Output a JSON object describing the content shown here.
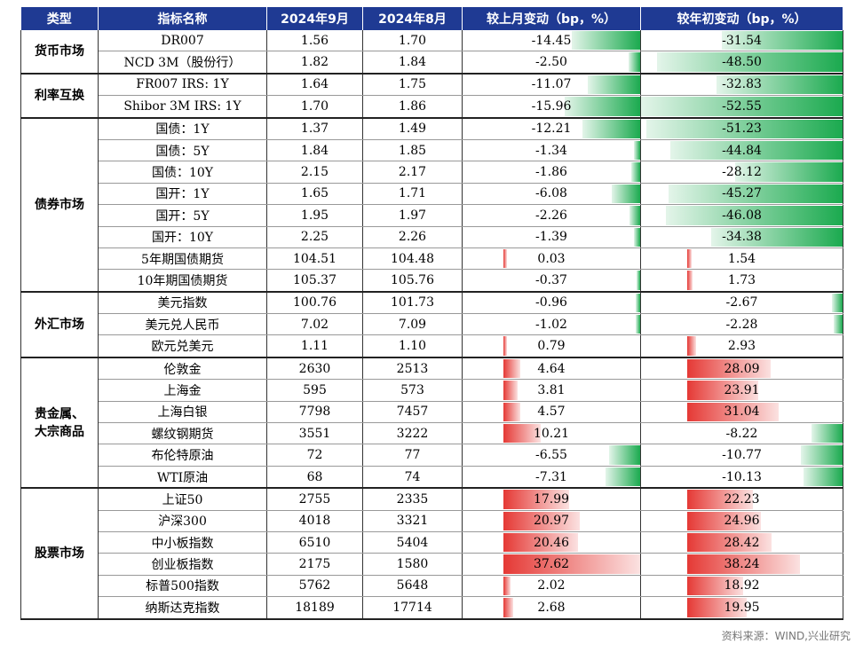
{
  "headers": [
    "类型",
    "指标名称",
    "2024年9月",
    "2024年8月",
    "较上月变动（bp，%）",
    "较年初变动（bp，%）"
  ],
  "colors": {
    "header_bg": "#1F3A93",
    "positive": "#E53935",
    "negative": "#1BAA4F"
  },
  "groups": [
    {
      "name": "货币市场",
      "rows": [
        {
          "name": "DR007",
          "sep": "1.56",
          "aug": "1.70",
          "mom": "-14.45",
          "ytd": "-31.54"
        },
        {
          "name": "NCD 3M（股份行）",
          "sep": "1.82",
          "aug": "1.84",
          "mom": "-2.50",
          "ytd": "-48.50"
        }
      ]
    },
    {
      "name": "利率互换",
      "rows": [
        {
          "name": "FR007 IRS: 1Y",
          "sep": "1.64",
          "aug": "1.75",
          "mom": "-11.07",
          "ytd": "-32.83"
        },
        {
          "name": "Shibor 3M IRS: 1Y",
          "sep": "1.70",
          "aug": "1.86",
          "mom": "-15.96",
          "ytd": "-52.55"
        }
      ]
    },
    {
      "name": "债券市场",
      "rows": [
        {
          "name": "国债：1Y",
          "sep": "1.37",
          "aug": "1.49",
          "mom": "-12.21",
          "ytd": "-51.23"
        },
        {
          "name": "国债：5Y",
          "sep": "1.84",
          "aug": "1.85",
          "mom": "-1.34",
          "ytd": "-44.84"
        },
        {
          "name": "国债：10Y",
          "sep": "2.15",
          "aug": "2.17",
          "mom": "-1.86",
          "ytd": "-28.12"
        },
        {
          "name": "国开：1Y",
          "sep": "1.65",
          "aug": "1.71",
          "mom": "-6.08",
          "ytd": "-45.27"
        },
        {
          "name": "国开：5Y",
          "sep": "1.95",
          "aug": "1.97",
          "mom": "-2.26",
          "ytd": "-46.08"
        },
        {
          "name": "国开：10Y",
          "sep": "2.25",
          "aug": "2.26",
          "mom": "-1.39",
          "ytd": "-34.38"
        },
        {
          "name": "5年期国债期货",
          "sep": "104.51",
          "aug": "104.48",
          "mom": "0.03",
          "ytd": "1.54"
        },
        {
          "name": "10年期国债期货",
          "sep": "105.37",
          "aug": "105.76",
          "mom": "-0.37",
          "ytd": "1.73"
        }
      ]
    },
    {
      "name": "外汇市场",
      "rows": [
        {
          "name": "美元指数",
          "sep": "100.76",
          "aug": "101.73",
          "mom": "-0.96",
          "ytd": "-2.67"
        },
        {
          "name": "美元兑人民币",
          "sep": "7.02",
          "aug": "7.09",
          "mom": "-1.02",
          "ytd": "-2.28"
        },
        {
          "name": "欧元兑美元",
          "sep": "1.11",
          "aug": "1.10",
          "mom": "0.79",
          "ytd": "2.93"
        }
      ]
    },
    {
      "name": "贵金属、\n大宗商品",
      "rows": [
        {
          "name": "伦敦金",
          "sep": "2630",
          "aug": "2513",
          "mom": "4.64",
          "ytd": "28.09"
        },
        {
          "name": "上海金",
          "sep": "595",
          "aug": "573",
          "mom": "3.81",
          "ytd": "23.91"
        },
        {
          "name": "上海白银",
          "sep": "7798",
          "aug": "7457",
          "mom": "4.57",
          "ytd": "31.04"
        },
        {
          "name": "螺纹钢期货",
          "sep": "3551",
          "aug": "3222",
          "mom": "10.21",
          "ytd": "-8.22"
        },
        {
          "name": "布伦特原油",
          "sep": "72",
          "aug": "77",
          "mom": "-6.55",
          "ytd": "-10.77"
        },
        {
          "name": "WTI原油",
          "sep": "68",
          "aug": "74",
          "mom": "-7.31",
          "ytd": "-10.13"
        }
      ]
    },
    {
      "name": "股票市场",
      "rows": [
        {
          "name": "上证50",
          "sep": "2755",
          "aug": "2335",
          "mom": "17.99",
          "ytd": "22.23"
        },
        {
          "name": "沪深300",
          "sep": "4018",
          "aug": "3321",
          "mom": "20.97",
          "ytd": "24.96"
        },
        {
          "name": "中小板指数",
          "sep": "6510",
          "aug": "5404",
          "mom": "20.46",
          "ytd": "28.42"
        },
        {
          "name": "创业板指数",
          "sep": "2175",
          "aug": "1580",
          "mom": "37.62",
          "ytd": "38.24"
        },
        {
          "name": "标普500指数",
          "sep": "5762",
          "aug": "5648",
          "mom": "2.02",
          "ytd": "18.92"
        },
        {
          "name": "纳斯达克指数",
          "sep": "18189",
          "aug": "17714",
          "mom": "2.68",
          "ytd": "19.95"
        }
      ]
    }
  ],
  "source": "资料来源：WIND,兴业研究"
}
